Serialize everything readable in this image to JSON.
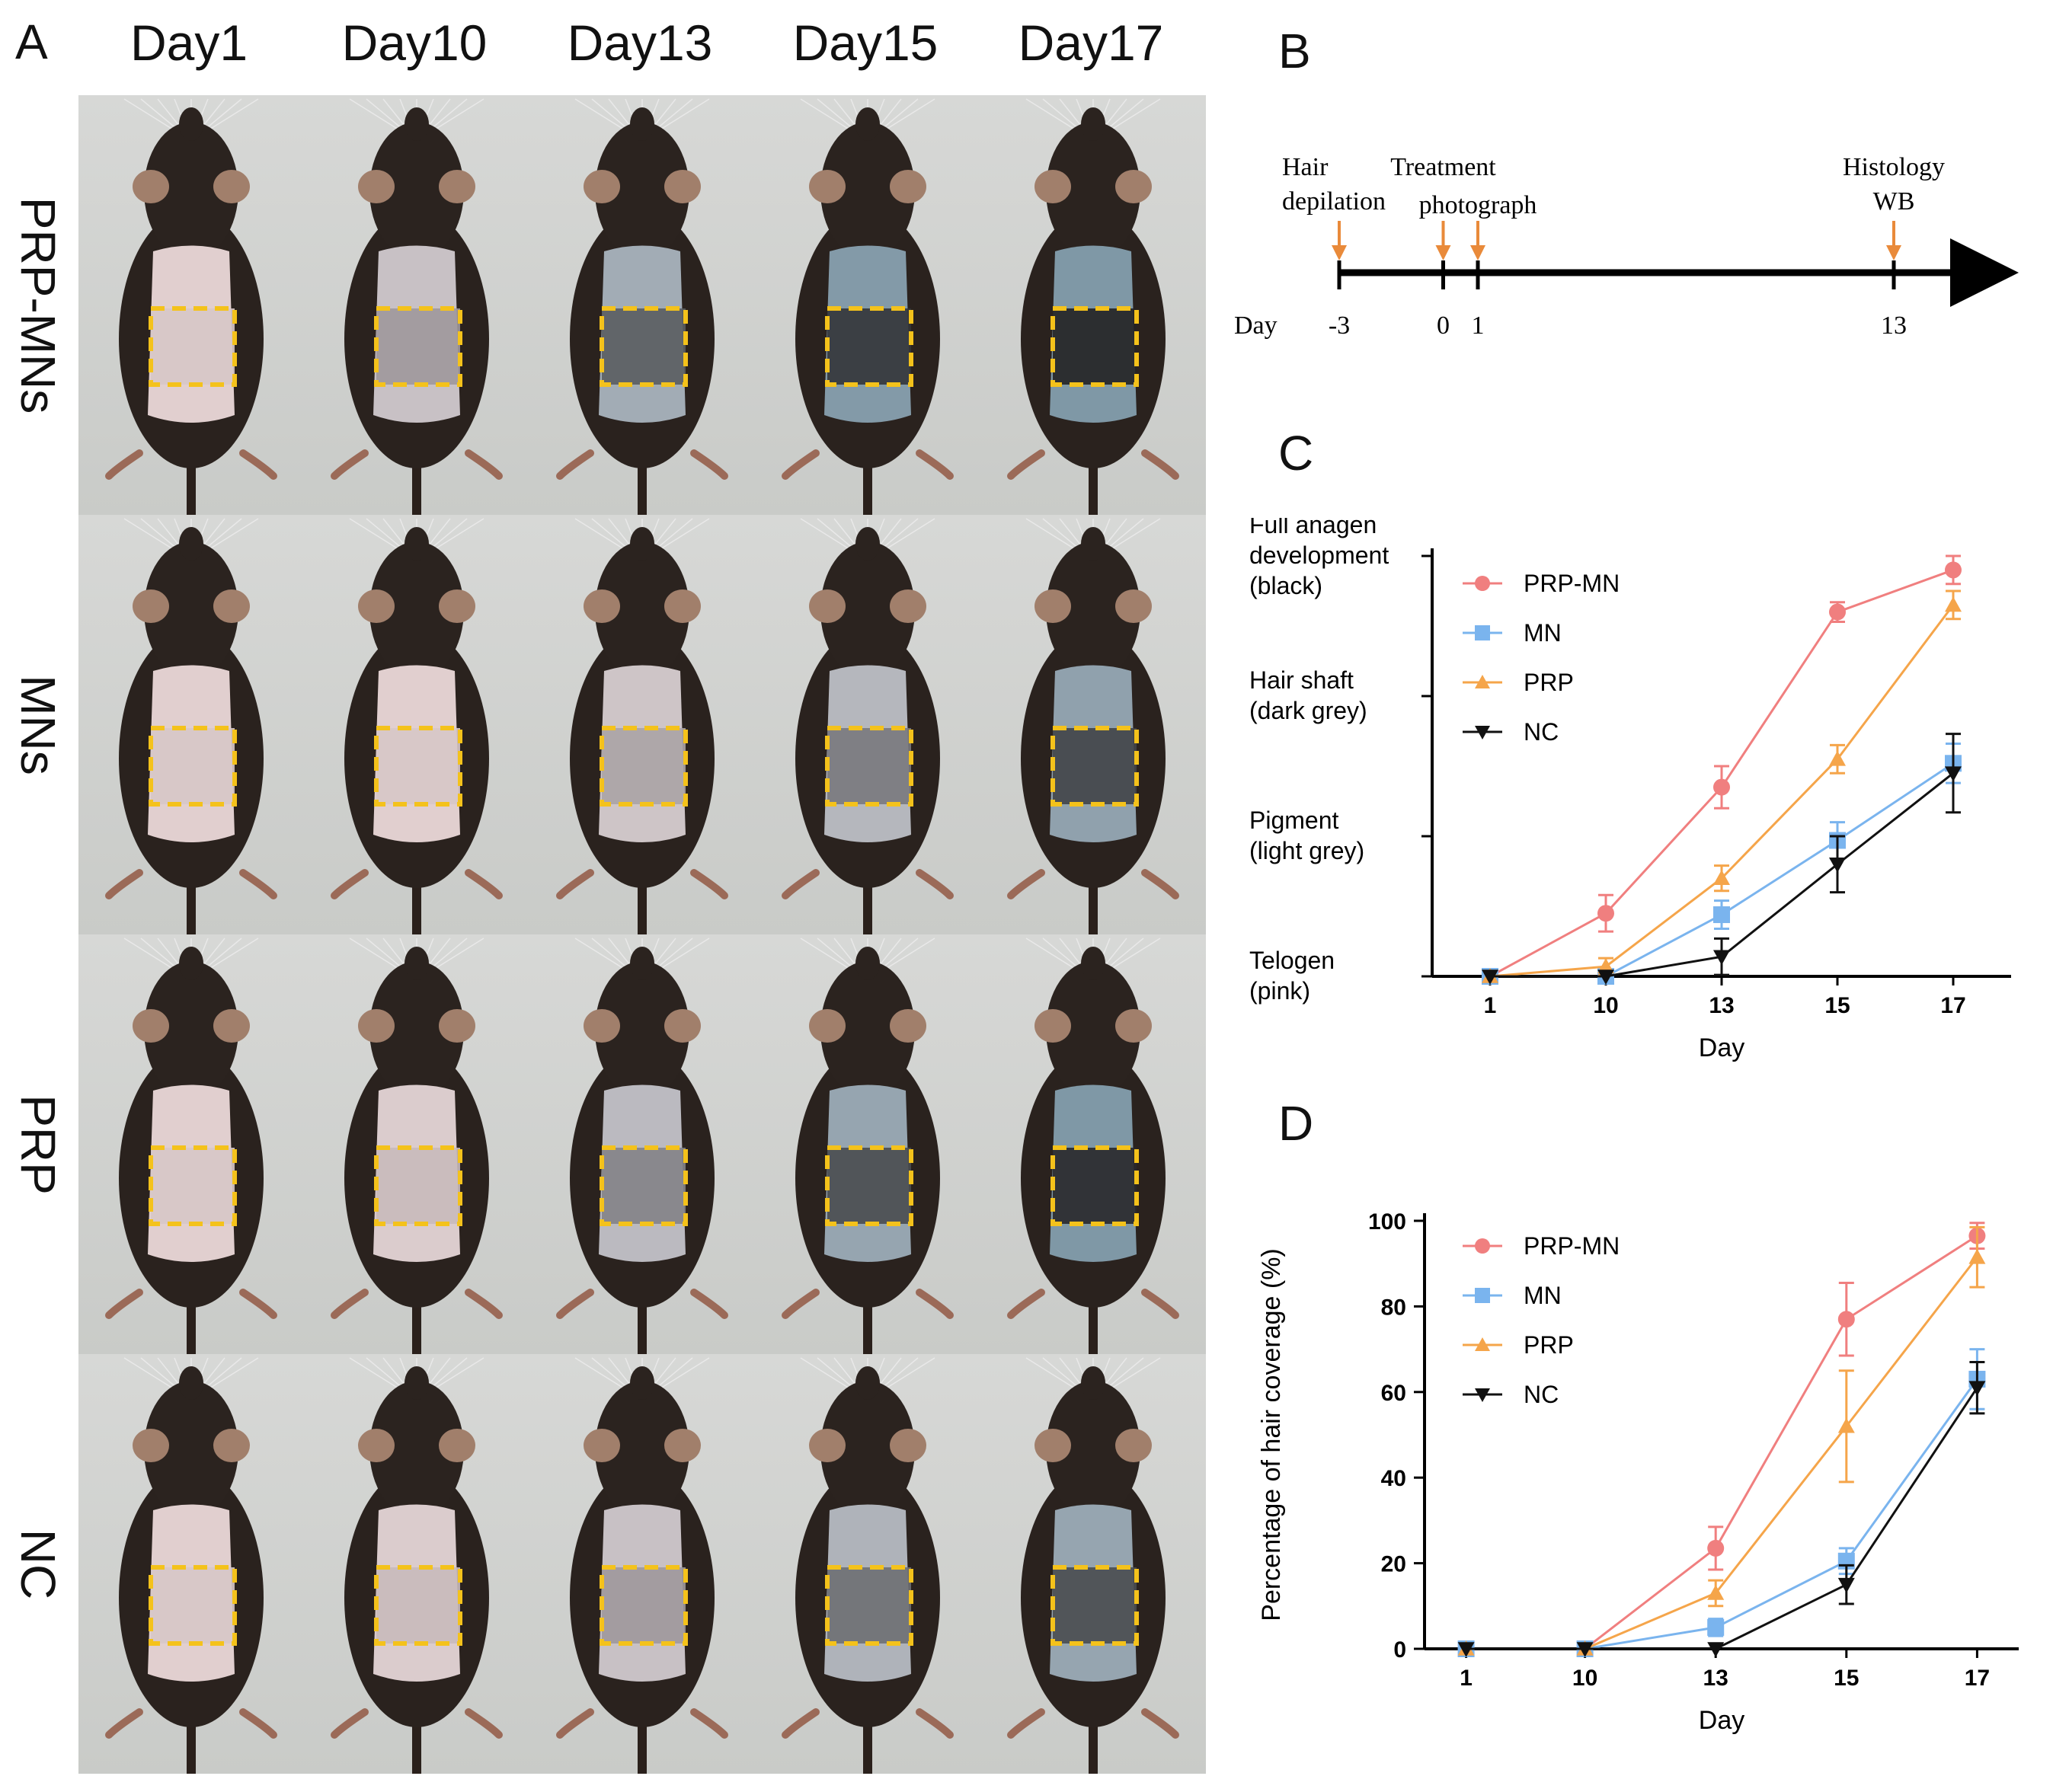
{
  "figure": {
    "panel_labels": {
      "a": "A",
      "b": "B",
      "c": "C",
      "d": "D"
    },
    "columns": [
      "Day1",
      "Day10",
      "Day13",
      "Day15",
      "Day17"
    ],
    "rows": [
      "PRP-MNs",
      "MNs",
      "PRP",
      "NC"
    ],
    "mouse_grid": {
      "scalp_darkness": [
        [
          0.05,
          0.25,
          0.55,
          0.8,
          0.95
        ],
        [
          0.05,
          0.05,
          0.2,
          0.4,
          0.7
        ],
        [
          0.05,
          0.1,
          0.35,
          0.65,
          0.9
        ],
        [
          0.05,
          0.1,
          0.25,
          0.45,
          0.65
        ]
      ],
      "box_color": "#f4c21b"
    }
  },
  "timeline": {
    "axis_label": "Day",
    "events": [
      {
        "label_line1": "Hair",
        "label_line2": "depilation",
        "day": "-3",
        "day_value": -3
      },
      {
        "label_line1": "Treatment",
        "label_line2": "",
        "day": "0",
        "day_value": 0
      },
      {
        "label_line1": "photograph",
        "label_line2": "",
        "day": "1",
        "day_value": 1
      },
      {
        "label_line1": "Histology",
        "label_line2": "WB",
        "day": "13",
        "day_value": 13
      }
    ],
    "arrow_color": "#e98a3a"
  },
  "colors": {
    "PRP-MN": "#f07f7f",
    "MN": "#7ab4ee",
    "PRP": "#f5a54a",
    "NC": "#111111"
  },
  "chart_data": [
    {
      "type": "line",
      "panel": "C",
      "title": "",
      "xlabel": "Day",
      "x": [
        "1",
        "10",
        "13",
        "15",
        "17"
      ],
      "ylim": [
        0,
        3
      ],
      "y_categories": [
        {
          "value": 0,
          "line1": "Telogen",
          "line2": "(pink)"
        },
        {
          "value": 1,
          "line1": "Pigment",
          "line2": "(light grey)"
        },
        {
          "value": 2,
          "line1": "Hair shaft",
          "line2": "(dark grey)"
        },
        {
          "value": 3,
          "line1": "Full anagen",
          "line2": "development",
          "line3": "(black)"
        }
      ],
      "series": [
        {
          "name": "PRP-MN",
          "marker": "circle",
          "values": [
            0,
            0.45,
            1.35,
            2.6,
            2.9
          ],
          "errors": [
            0,
            0.13,
            0.15,
            0.07,
            0.1
          ]
        },
        {
          "name": "MN",
          "marker": "square",
          "values": [
            0,
            0,
            0.44,
            0.97,
            1.52
          ],
          "errors": [
            0,
            0,
            0.1,
            0.13,
            0.14
          ]
        },
        {
          "name": "PRP",
          "marker": "triangle",
          "values": [
            0,
            0.07,
            0.7,
            1.55,
            2.65
          ],
          "errors": [
            0,
            0.06,
            0.09,
            0.1,
            0.1
          ]
        },
        {
          "name": "NC",
          "marker": "triangle-down",
          "values": [
            0,
            0,
            0.14,
            0.8,
            1.45
          ],
          "errors": [
            0,
            0,
            0.13,
            0.2,
            0.28
          ]
        }
      ],
      "legend": "top-left inside"
    },
    {
      "type": "line",
      "panel": "D",
      "title": "",
      "xlabel": "Day",
      "ylabel": "Percentage of hair coverage (%)",
      "x": [
        "1",
        "10",
        "13",
        "15",
        "17"
      ],
      "ylim": [
        0,
        100
      ],
      "yticks": [
        "0",
        "20",
        "40",
        "60",
        "80",
        "100"
      ],
      "series": [
        {
          "name": "PRP-MN",
          "marker": "circle",
          "values": [
            0,
            0,
            23.5,
            77,
            96.5
          ],
          "errors": [
            0,
            0,
            5,
            8.5,
            3
          ]
        },
        {
          "name": "MN",
          "marker": "square",
          "values": [
            0,
            0,
            5,
            20.5,
            63
          ],
          "errors": [
            0,
            0,
            2,
            3,
            7
          ]
        },
        {
          "name": "PRP",
          "marker": "triangle",
          "values": [
            0,
            0,
            13,
            52,
            91.5
          ],
          "errors": [
            0,
            0,
            3,
            13,
            7
          ]
        },
        {
          "name": "NC",
          "marker": "triangle-down",
          "values": [
            0,
            0,
            0,
            15,
            61
          ],
          "errors": [
            0,
            0,
            0,
            4.5,
            6
          ]
        }
      ],
      "legend": "top-left inside"
    }
  ]
}
